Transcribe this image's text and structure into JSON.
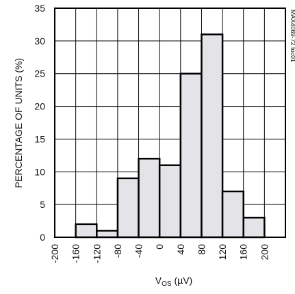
{
  "chart_data": {
    "type": "bar",
    "bin_edges": [
      -200,
      -160,
      -120,
      -80,
      -40,
      0,
      40,
      80,
      120,
      160,
      200,
      240
    ],
    "values": [
      0,
      2,
      1,
      9,
      12,
      11,
      25,
      31,
      7,
      3,
      0
    ],
    "x_tick_labels": [
      "-200",
      "-160",
      "-120",
      "-80",
      "-40",
      "0",
      "40",
      "80",
      "120",
      "160",
      "200"
    ],
    "y_tick_labels": [
      "0",
      "5",
      "10",
      "15",
      "20",
      "25",
      "30",
      "35"
    ],
    "xlabel_main": "V",
    "xlabel_sub": "OS",
    "xlabel_unit": " (µV)",
    "ylabel": "PERCENTAGE OF UNITS (%)",
    "ylim": [
      0,
      35
    ],
    "xlim": [
      -200,
      240
    ],
    "grid": true,
    "side_label": "MAX4069-72 toc01",
    "bar_fill": "#e4e4e8",
    "bar_stroke": "#000000",
    "grid_color": "#000000"
  }
}
